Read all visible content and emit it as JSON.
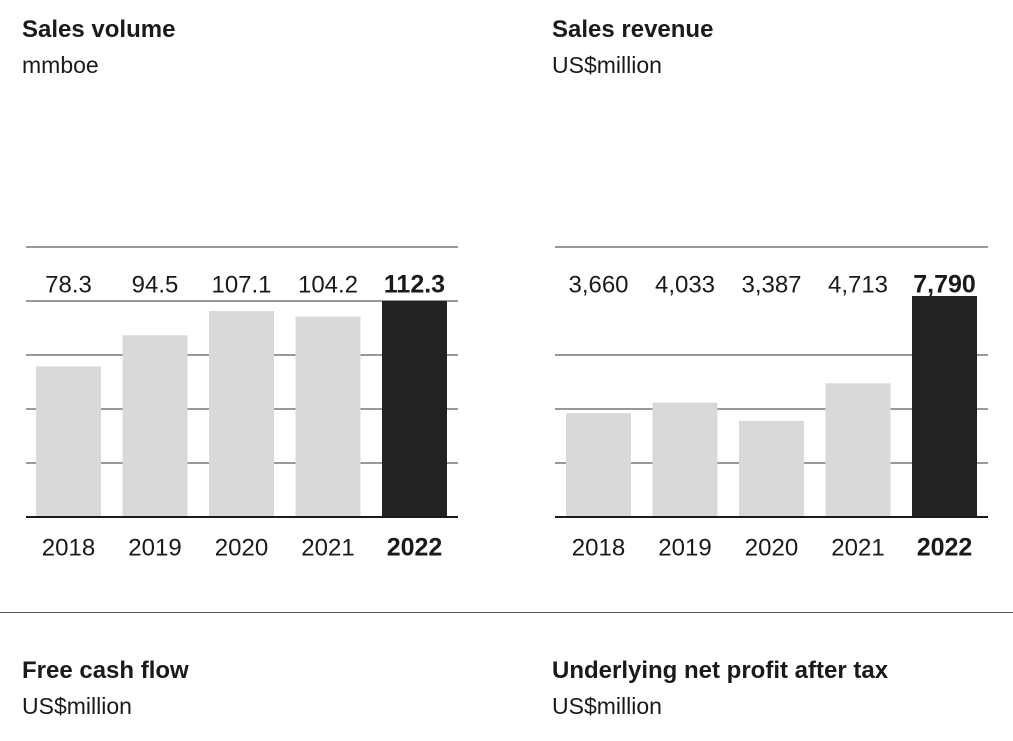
{
  "panels": [
    {
      "title": "Sales volume",
      "unit": "mmboe"
    },
    {
      "title": "Sales revenue",
      "unit": "US$million"
    },
    {
      "title": "Free cash flow",
      "unit": "US$million"
    },
    {
      "title": "Underlying net profit after tax",
      "unit": "US$million"
    }
  ],
  "colors": {
    "bar": "#d9d9d9",
    "highlight": "#222222",
    "rule": "#1a1a1a",
    "text": "#1a1a1a"
  },
  "chart_data": [
    {
      "type": "bar",
      "title": "Sales volume",
      "ylabel": "mmboe",
      "categories": [
        "2018",
        "2019",
        "2020",
        "2021",
        "2022"
      ],
      "values": [
        78.3,
        94.5,
        107.1,
        104.2,
        112.3
      ],
      "value_labels": [
        "78.3",
        "94.5",
        "107.1",
        "104.2",
        "112.3"
      ],
      "highlight": "2022",
      "ylim": [
        0,
        112.3
      ],
      "grid": true
    },
    {
      "type": "bar",
      "title": "Sales revenue",
      "ylabel": "US$million",
      "categories": [
        "2018",
        "2019",
        "2020",
        "2021",
        "2022"
      ],
      "values": [
        3660,
        4033,
        3387,
        4713,
        7790
      ],
      "value_labels": [
        "3,660",
        "4,033",
        "3,387",
        "4,713",
        "7,790"
      ],
      "highlight": "2022",
      "ylim": [
        0,
        7790
      ],
      "grid": true
    }
  ]
}
